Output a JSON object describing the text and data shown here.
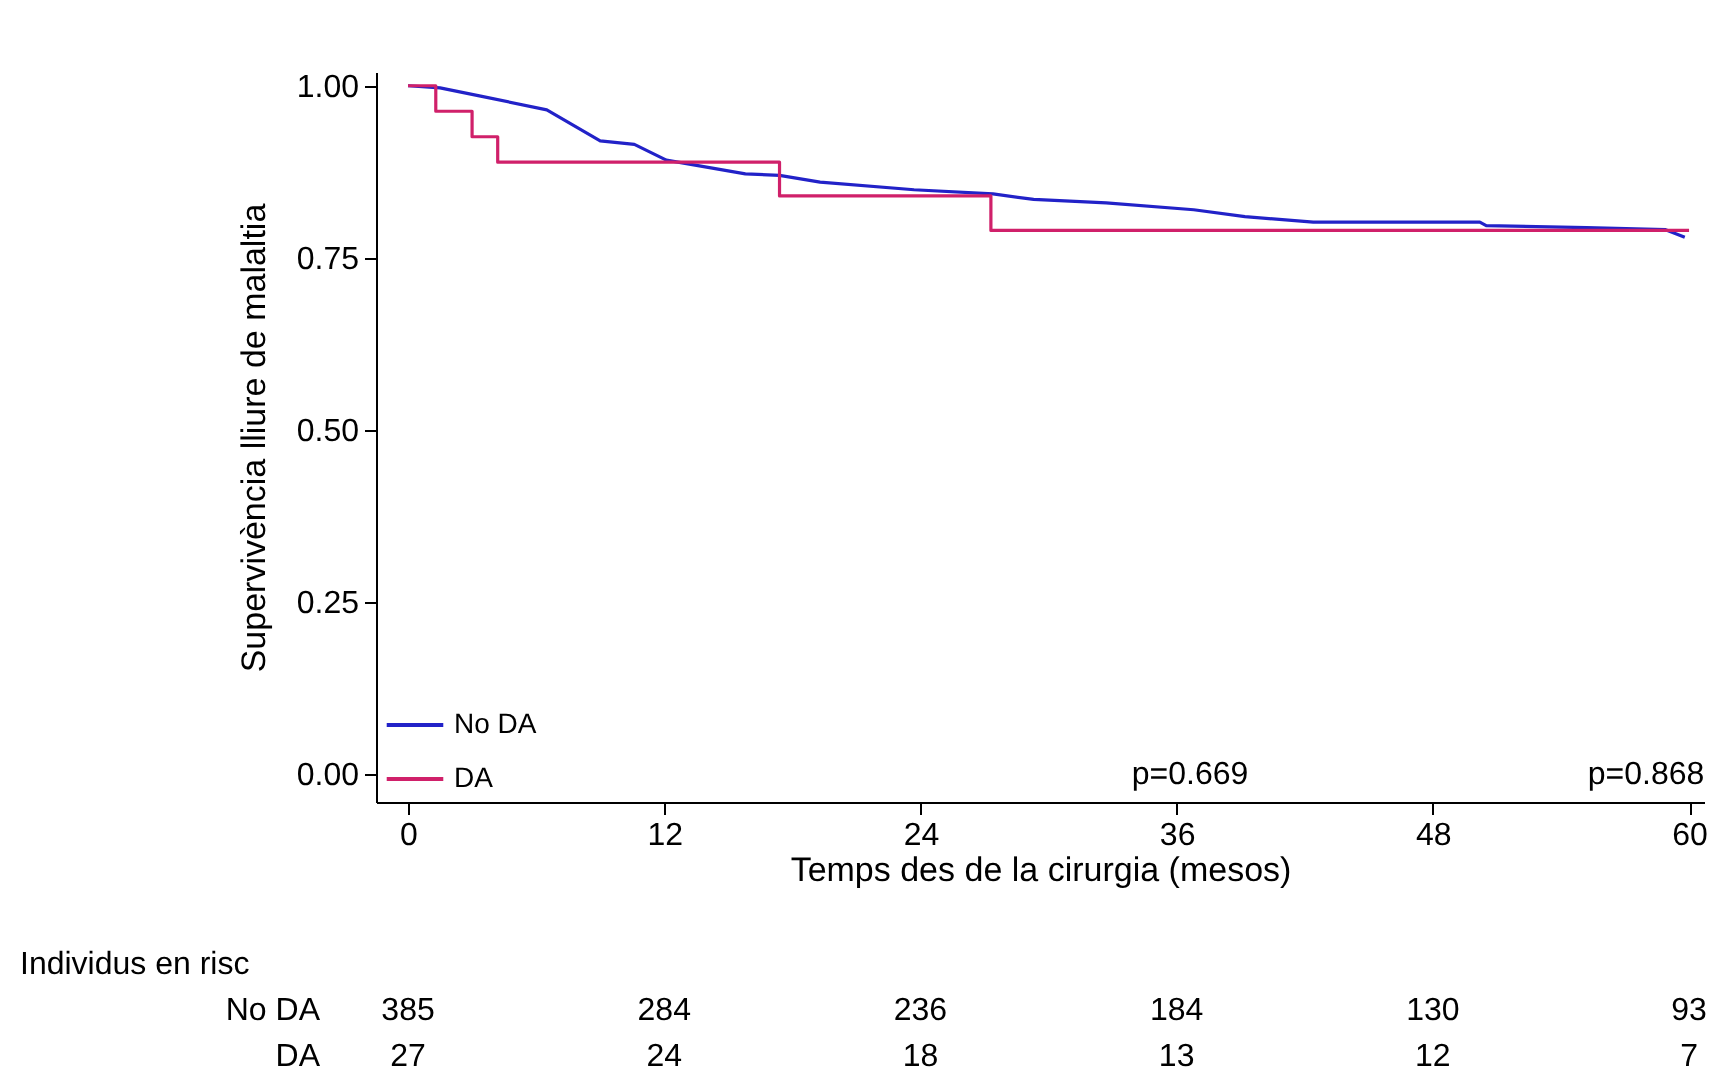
{
  "chart_data": {
    "type": "line",
    "xlabel": "Temps des de la cirurgia (mesos)",
    "ylabel": "Supervivència lliure de malaltia",
    "xlim": [
      -1.5,
      60.7
    ],
    "ylim": [
      -0.04,
      1.02
    ],
    "xticks": [
      0,
      12,
      24,
      36,
      48,
      60
    ],
    "yticks": [
      {
        "value": 0,
        "label": "0.00"
      },
      {
        "value": 0.25,
        "label": "0.25"
      },
      {
        "value": 0.5,
        "label": "0.50"
      },
      {
        "value": 0.75,
        "label": "0.75"
      },
      {
        "value": 1,
        "label": "1.00"
      }
    ],
    "grid": false,
    "legend": "bottom left",
    "marker": "none",
    "series": [
      {
        "name": "No DA",
        "color": "#2222c8",
        "type": "line",
        "x": [
          0,
          1.5,
          3.4,
          6.5,
          9,
          10.6,
          12.1,
          15.8,
          17.4,
          19.3,
          23.7,
          27.4,
          29.3,
          32.7,
          36.8,
          39.2,
          42.4,
          50.2,
          50.5,
          55.2,
          58.9,
          59.8
        ],
        "values": [
          1,
          0.997,
          0.985,
          0.965,
          0.92,
          0.915,
          0.892,
          0.872,
          0.87,
          0.86,
          0.849,
          0.843,
          0.835,
          0.83,
          0.82,
          0.81,
          0.802,
          0.802,
          0.797,
          0.794,
          0.791,
          0.78
        ]
      },
      {
        "name": "DA",
        "color": "#d0206a",
        "type": "step",
        "x": [
          0,
          1.3,
          3,
          4.2,
          17.4,
          27.3,
          60
        ],
        "values": [
          1,
          0.963,
          0.926,
          0.889,
          0.84,
          0.79,
          0.79
        ]
      }
    ],
    "annotations": [
      "p=0.669",
      "p=0.868",
      "Individus en risc",
      "No DA",
      "385",
      "284",
      "236",
      "184",
      "130",
      "93",
      "DA",
      "27",
      "24",
      "18",
      "13",
      "12",
      "7"
    ]
  }
}
